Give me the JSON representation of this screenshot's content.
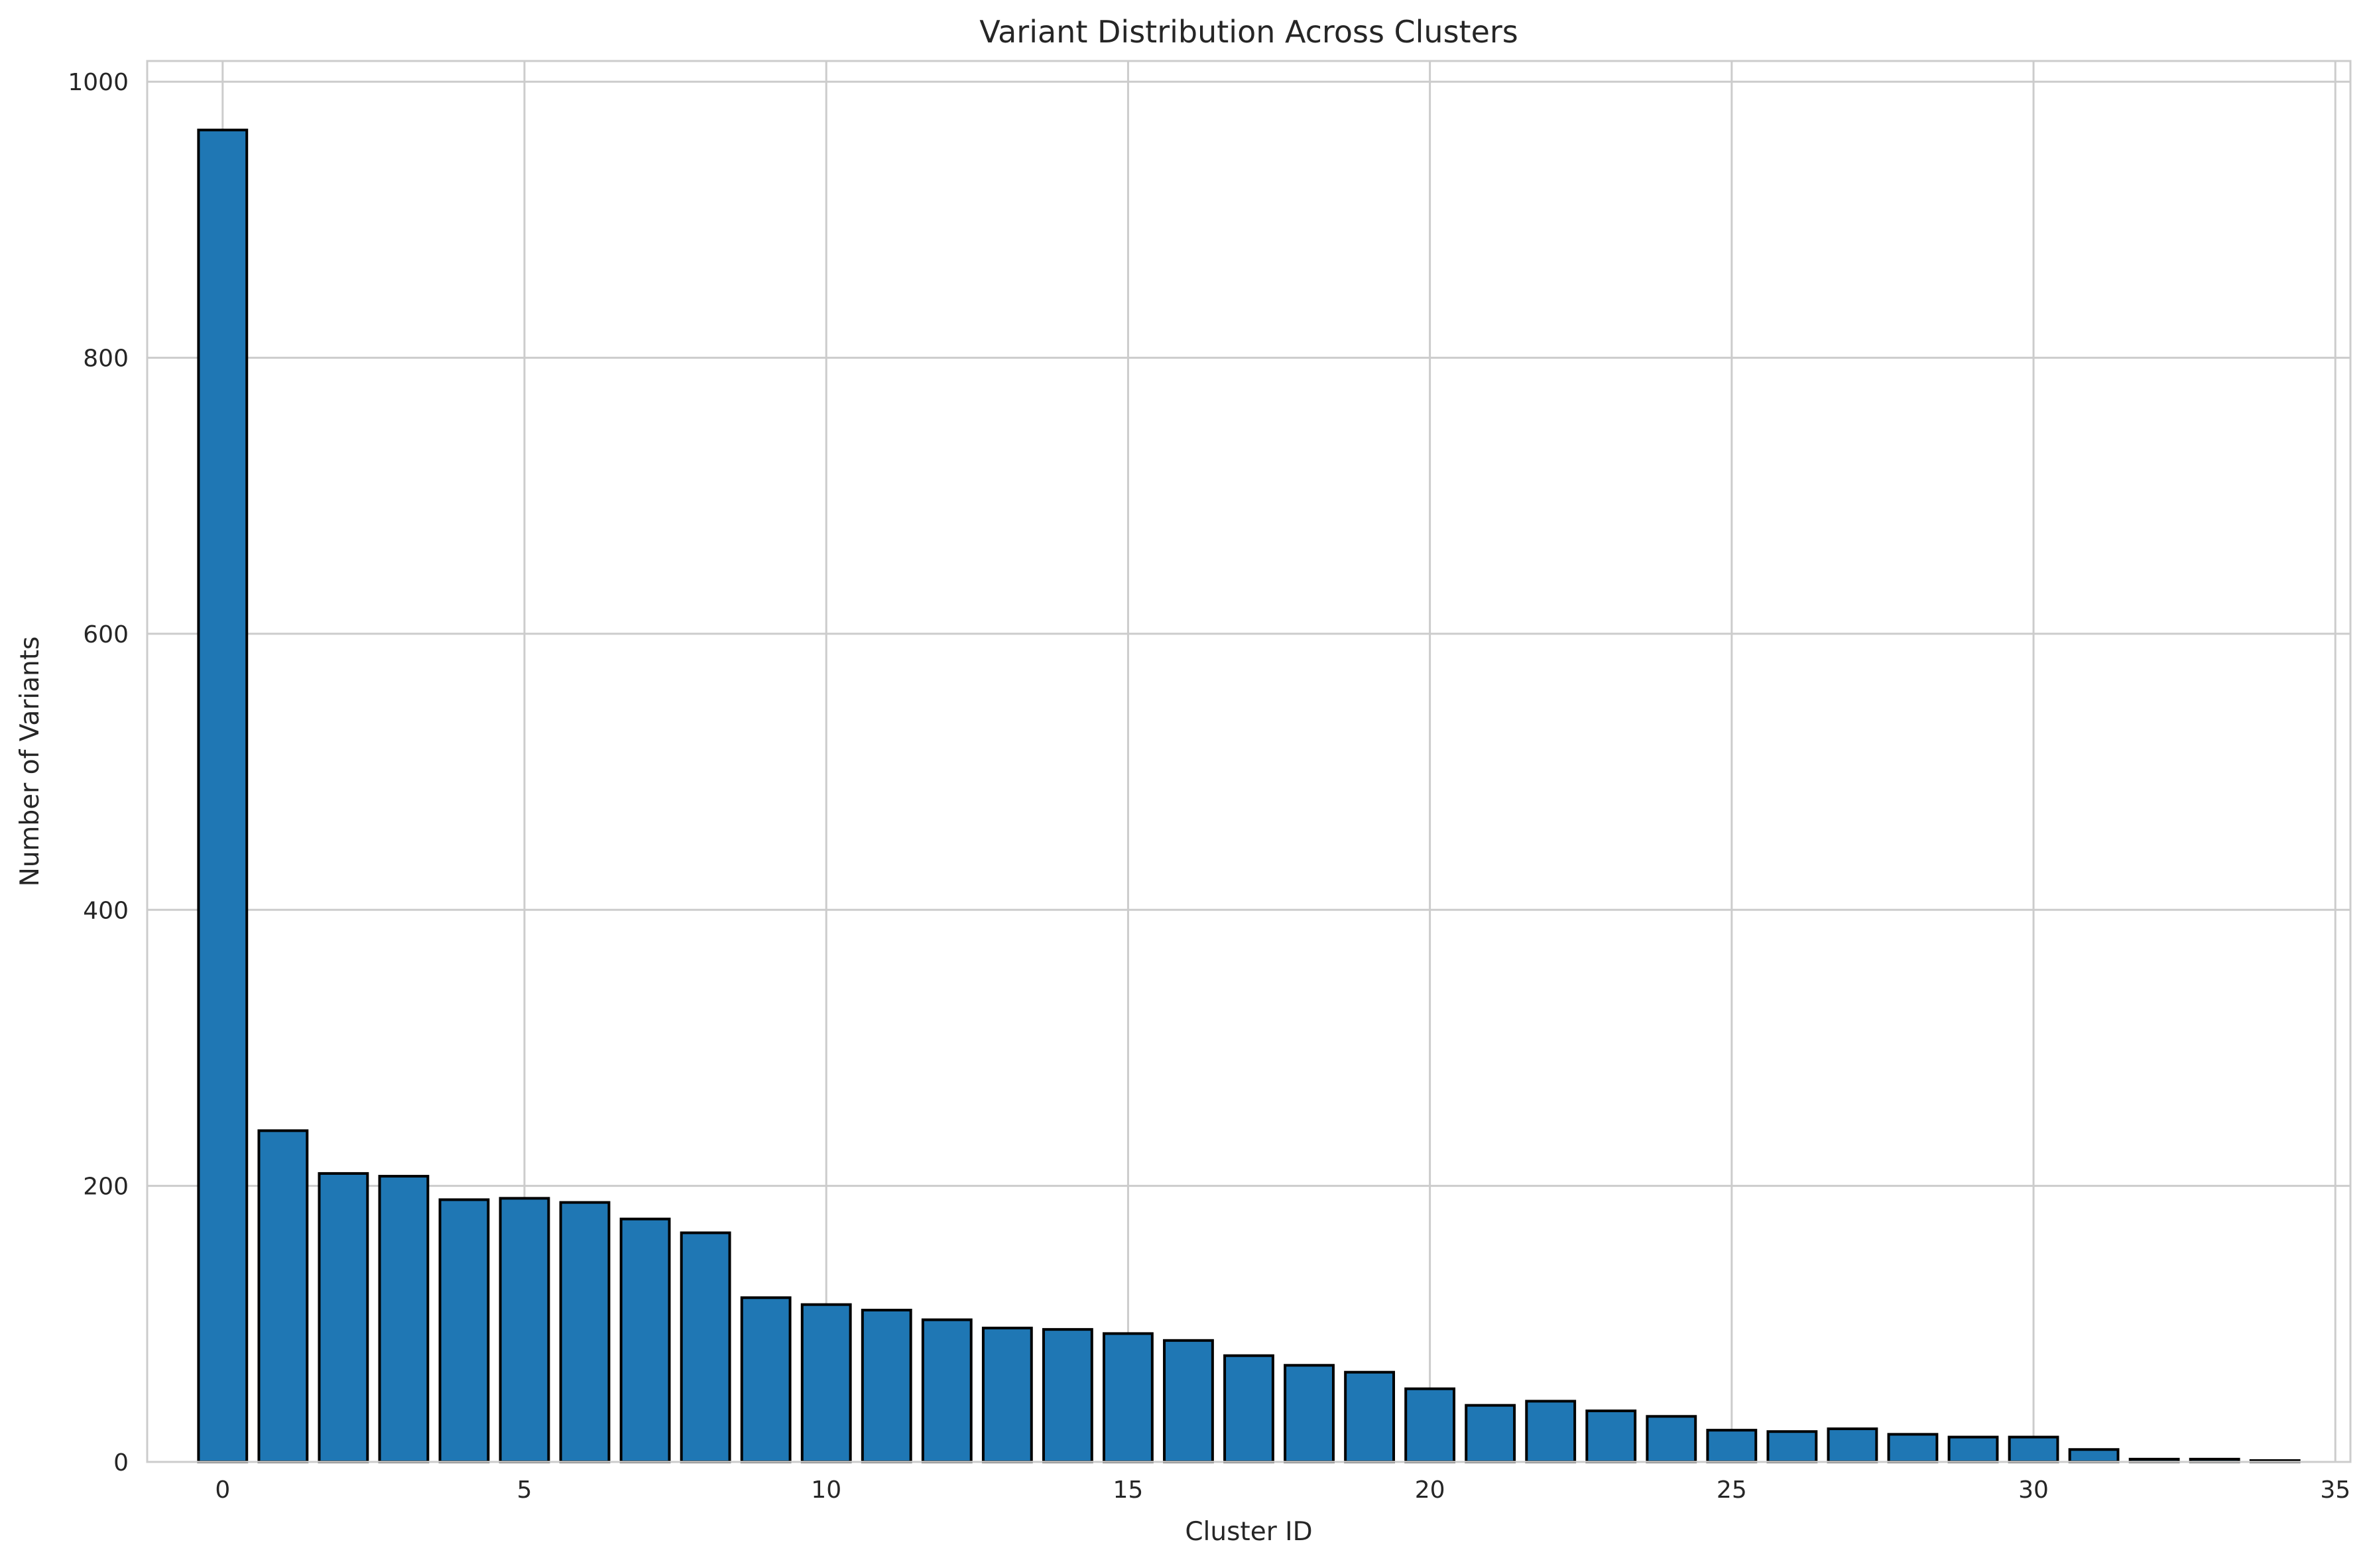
{
  "chart_data": {
    "type": "bar",
    "title": "Variant Distribution Across Clusters",
    "xlabel": "Cluster ID",
    "ylabel": "Number of Variants",
    "categories": [
      0,
      1,
      2,
      3,
      4,
      5,
      6,
      7,
      8,
      9,
      10,
      11,
      12,
      13,
      14,
      15,
      16,
      17,
      18,
      19,
      20,
      21,
      22,
      23,
      24,
      25,
      26,
      27,
      28,
      29,
      30,
      31,
      32,
      33,
      34
    ],
    "values": [
      965,
      240,
      209,
      207,
      190,
      191,
      188,
      176,
      166,
      119,
      114,
      110,
      103,
      97,
      96,
      93,
      88,
      77,
      70,
      65,
      53,
      41,
      44,
      37,
      33,
      23,
      22,
      24,
      20,
      18,
      18,
      9,
      2,
      2,
      1
    ],
    "xlim": [
      -1.25,
      35.25
    ],
    "ylim": [
      0,
      1015
    ],
    "xticks": [
      0,
      5,
      10,
      15,
      20,
      25,
      30,
      35
    ],
    "yticks": [
      0,
      200,
      400,
      600,
      800,
      1000
    ],
    "grid": true,
    "legend": "none",
    "colors": {
      "bar_fill": "#1f77b4",
      "bar_edge": "#000000",
      "grid": "#cccccc",
      "spine": "#cccccc",
      "text": "#262626",
      "background": "#ffffff"
    }
  }
}
